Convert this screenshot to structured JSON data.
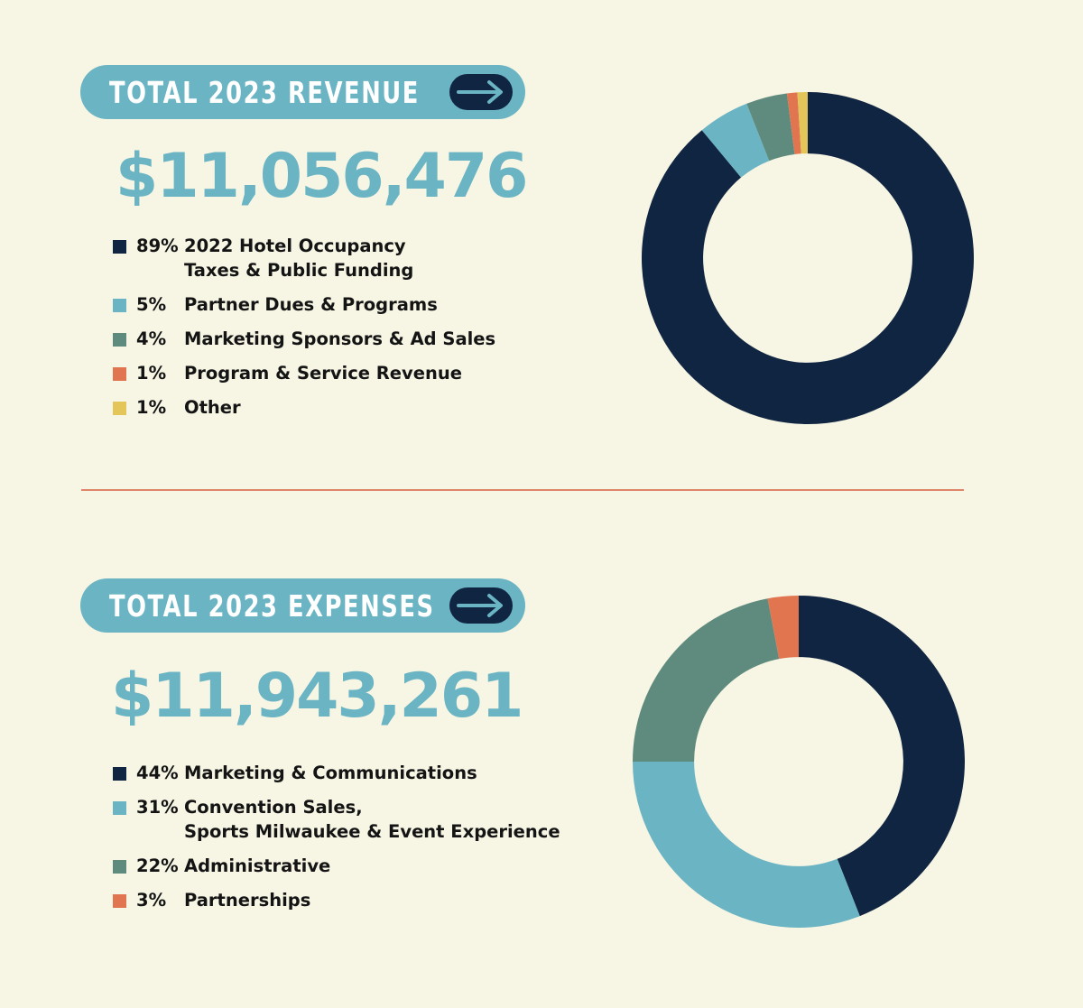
{
  "colors": {
    "background": "#f7f5e3",
    "navy": "#102542",
    "teal": "#6ab4c4",
    "green": "#5e8b7e",
    "orange": "#e07550",
    "yellow": "#e3c55a",
    "divider": "#e0856a"
  },
  "revenue": {
    "header": "TOTAL 2023 REVENUE",
    "arrow_icon": "arrow-right-icon",
    "total": "$11,056,476",
    "legend": [
      {
        "pct": "89%",
        "label": "2022 Hotel Occupancy\nTaxes & Public Funding",
        "color": "#102542"
      },
      {
        "pct": "5%",
        "label": "Partner Dues & Programs",
        "color": "#6ab4c4"
      },
      {
        "pct": "4%",
        "label": "Marketing Sponsors & Ad Sales",
        "color": "#5e8b7e"
      },
      {
        "pct": "1%",
        "label": "Program & Service Revenue",
        "color": "#e07550"
      },
      {
        "pct": "1%",
        "label": "Other",
        "color": "#e3c55a"
      }
    ]
  },
  "expenses": {
    "header": "TOTAL 2023 EXPENSES",
    "arrow_icon": "arrow-right-icon",
    "total": "$11,943,261",
    "legend": [
      {
        "pct": "44%",
        "label": "Marketing & Communications",
        "color": "#102542"
      },
      {
        "pct": "31%",
        "label": "Convention Sales,\nSports Milwaukee & Event Experience",
        "color": "#6ab4c4"
      },
      {
        "pct": "22%",
        "label": "Administrative",
        "color": "#5e8b7e"
      },
      {
        "pct": "3%",
        "label": "Partnerships",
        "color": "#e07550"
      }
    ]
  },
  "chart_data": [
    {
      "type": "pie",
      "donut": true,
      "title": "TOTAL 2023 REVENUE",
      "categories": [
        "2022 Hotel Occupancy Taxes & Public Funding",
        "Partner Dues & Programs",
        "Marketing Sponsors & Ad Sales",
        "Program & Service Revenue",
        "Other"
      ],
      "values": [
        89,
        5,
        4,
        1,
        1
      ],
      "colors": [
        "#102542",
        "#6ab4c4",
        "#5e8b7e",
        "#e07550",
        "#e3c55a"
      ],
      "legend": "left"
    },
    {
      "type": "pie",
      "donut": true,
      "title": "TOTAL 2023 EXPENSES",
      "categories": [
        "Marketing & Communications",
        "Convention Sales, Sports Milwaukee & Event Experience",
        "Administrative",
        "Partnerships"
      ],
      "values": [
        44,
        31,
        22,
        3
      ],
      "colors": [
        "#102542",
        "#6ab4c4",
        "#5e8b7e",
        "#e07550"
      ],
      "legend": "left"
    }
  ]
}
